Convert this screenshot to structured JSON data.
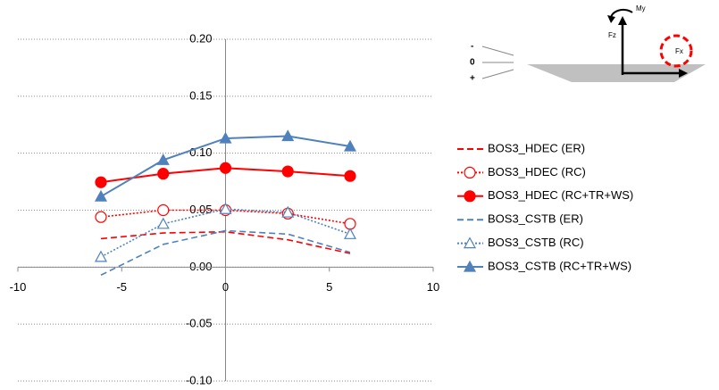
{
  "chart_data": {
    "type": "line",
    "x": [
      -6,
      -3,
      0,
      3,
      6
    ],
    "xlim": [
      -10,
      10
    ],
    "xticks": [
      -10,
      -5,
      0,
      5,
      10
    ],
    "ylim": [
      -0.1,
      0.2
    ],
    "yticks": [
      {
        "value": -0.1,
        "label": "-0.10"
      },
      {
        "value": -0.05,
        "label": "-0.05"
      },
      {
        "value": 0,
        "label": "0.00"
      },
      {
        "value": 0.05,
        "label": "0.05"
      },
      {
        "value": 0.1,
        "label": "0.10"
      },
      {
        "value": 0.15,
        "label": "0.15"
      },
      {
        "value": 0.2,
        "label": "0.20"
      }
    ],
    "grid": true,
    "legend": "right",
    "series": [
      {
        "name": "BOS3_HDEC (ER)",
        "color": "#ff0000",
        "line_style": "dashed",
        "marker": "none",
        "values": [
          0.025,
          0.03,
          0.031,
          0.024,
          0.012
        ]
      },
      {
        "name": "BOS3_HDEC (RC)",
        "color": "#ff0000",
        "line_style": "dotted",
        "marker": "open-circle",
        "values": [
          0.044,
          0.05,
          0.05,
          0.047,
          0.038
        ]
      },
      {
        "name": "BOS3_HDEC (RC+TR+WS)",
        "color": "#ff0000",
        "line_style": "solid",
        "marker": "filled-circle",
        "values": [
          0.0745,
          0.082,
          0.087,
          0.084,
          0.08
        ]
      },
      {
        "name": "BOS3_CSTB (ER)",
        "color": "#4f81bd",
        "line_style": "dashed",
        "marker": "none",
        "values": [
          -0.007,
          0.02,
          0.032,
          0.029,
          0.013
        ]
      },
      {
        "name": "BOS3_CSTB (RC)",
        "color": "#4f81bd",
        "line_style": "dotted",
        "marker": "open-triangle",
        "values": [
          0.009,
          0.038,
          0.051,
          0.048,
          0.029
        ]
      },
      {
        "name": "BOS3_CSTB (RC+TR+WS)",
        "color": "#4f81bd",
        "line_style": "solid",
        "marker": "filled-triangle",
        "values": [
          0.062,
          0.094,
          0.113,
          0.115,
          0.106
        ]
      }
    ],
    "inset": {
      "labels": [
        "My",
        "Fz",
        "Fx",
        "-",
        "0",
        "+"
      ]
    }
  }
}
